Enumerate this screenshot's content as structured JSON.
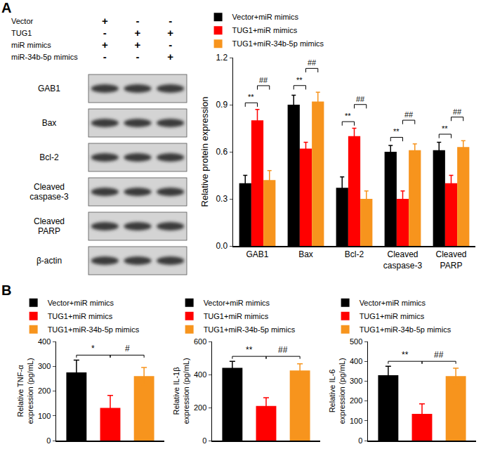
{
  "panel_labels": [
    "A",
    "B"
  ],
  "blot": {
    "conditions": [
      {
        "label": "Vector",
        "marks": [
          "+",
          "-",
          "-"
        ]
      },
      {
        "label": "TUG1",
        "marks": [
          "-",
          "+",
          "+"
        ]
      },
      {
        "label": "miR mimics",
        "marks": [
          "+",
          "+",
          "-"
        ]
      },
      {
        "label": "miR-34b-5p mimics",
        "marks": [
          "-",
          "-",
          "+"
        ]
      }
    ],
    "bands": [
      "GAB1",
      "Bax",
      "Bcl-2",
      "Cleaved caspase-3",
      "Cleaved PARP",
      "β-actin"
    ]
  },
  "chart_data": [
    {
      "type": "bar",
      "categories": [
        "GAB1",
        "Bax",
        "Bcl-2",
        "Cleaved caspase-3",
        "Cleaved PARP"
      ],
      "series": [
        {
          "name": "Vector+miR mimics",
          "color": "#000000",
          "values": [
            0.4,
            0.9,
            0.37,
            0.6,
            0.61
          ],
          "errors": [
            0.05,
            0.06,
            0.07,
            0.04,
            0.05
          ]
        },
        {
          "name": "TUG1+miR mimics",
          "color": "#ff0000",
          "values": [
            0.8,
            0.62,
            0.7,
            0.3,
            0.4
          ],
          "errors": [
            0.07,
            0.04,
            0.05,
            0.05,
            0.05
          ]
        },
        {
          "name": "TUG1+miR-34b-5p mimics",
          "color": "#f7941d",
          "values": [
            0.42,
            0.92,
            0.3,
            0.61,
            0.63
          ],
          "errors": [
            0.06,
            0.06,
            0.05,
            0.04,
            0.04
          ]
        }
      ],
      "ylim": [
        0,
        1.2
      ],
      "yticks": [
        {
          "value": 0,
          "label": "0.0"
        },
        0.3,
        0.6,
        0.9,
        1.2
      ],
      "y_label": "Relative protein expression",
      "legend": "top left",
      "annotations": [
        {
          "category": "GAB1",
          "text": "**",
          "between": [
            "Vector+miR mimics",
            "TUG1+miR mimics"
          ]
        },
        {
          "category": "GAB1",
          "text": "##",
          "between": [
            "TUG1+miR mimics",
            "TUG1+miR-34b-5p mimics"
          ]
        },
        {
          "category": "Bax",
          "text": "**",
          "between": [
            "Vector+miR mimics",
            "TUG1+miR mimics"
          ]
        },
        {
          "category": "Bax",
          "text": "##",
          "between": [
            "TUG1+miR mimics",
            "TUG1+miR-34b-5p mimics"
          ]
        },
        {
          "category": "Bcl-2",
          "text": "**",
          "between": [
            "Vector+miR mimics",
            "TUG1+miR mimics"
          ]
        },
        {
          "category": "Bcl-2",
          "text": "##",
          "between": [
            "TUG1+miR mimics",
            "TUG1+miR-34b-5p mimics"
          ]
        },
        {
          "category": "Cleaved caspase-3",
          "text": "**",
          "between": [
            "Vector+miR mimics",
            "TUG1+miR mimics"
          ]
        },
        {
          "category": "Cleaved caspase-3",
          "text": "##",
          "between": [
            "TUG1+miR mimics",
            "TUG1+miR-34b-5p mimics"
          ]
        },
        {
          "category": "Cleaved PARP",
          "text": "**",
          "between": [
            "Vector+miR mimics",
            "TUG1+miR mimics"
          ]
        },
        {
          "category": "Cleaved PARP",
          "text": "##",
          "between": [
            "TUG1+miR mimics",
            "TUG1+miR-34b-5p mimics"
          ]
        }
      ]
    },
    {
      "type": "bar",
      "categories": [
        "Vector+miR mimics",
        "TUG1+miR mimics",
        "TUG1+miR-34b-5p mimics"
      ],
      "values": [
        275,
        132,
        260
      ],
      "errors": [
        50,
        50,
        35
      ],
      "colors": [
        "#000000",
        "#ff0000",
        "#f7941d"
      ],
      "ylim": [
        0,
        400
      ],
      "yticks": [
        0,
        100,
        200,
        300,
        400
      ],
      "y_label": [
        "Relative TNF-α",
        "expression (pg/mL)"
      ],
      "tick_labels": "y",
      "legend": "top left",
      "annotations": [
        {
          "text": "*",
          "between": [
            "Vector+miR mimics",
            "TUG1+miR mimics"
          ]
        },
        {
          "text": "#",
          "between": [
            "TUG1+miR mimics",
            "TUG1+miR-34b-5p mimics"
          ]
        }
      ]
    },
    {
      "type": "bar",
      "categories": [
        "Vector+miR mimics",
        "TUG1+miR mimics",
        "TUG1+miR-34b-5p mimics"
      ],
      "values": [
        440,
        210,
        425
      ],
      "errors": [
        40,
        50,
        40
      ],
      "colors": [
        "#000000",
        "#ff0000",
        "#f7941d"
      ],
      "ylim": [
        0,
        600
      ],
      "yticks": [
        0,
        200,
        400,
        600
      ],
      "y_label": [
        "Relative IL-1β",
        "expression (pg/mL)"
      ],
      "tick_labels": "y",
      "legend": "top left",
      "annotations": [
        {
          "text": "**",
          "between": [
            "Vector+miR mimics",
            "TUG1+miR mimics"
          ]
        },
        {
          "text": "##",
          "between": [
            "TUG1+miR mimics",
            "TUG1+miR-34b-5p mimics"
          ]
        }
      ]
    },
    {
      "type": "bar",
      "categories": [
        "Vector+miR mimics",
        "TUG1+miR mimics",
        "TUG1+miR-34b-5p mimics"
      ],
      "values": [
        330,
        135,
        325
      ],
      "errors": [
        45,
        50,
        40
      ],
      "colors": [
        "#000000",
        "#ff0000",
        "#f7941d"
      ],
      "ylim": [
        0,
        500
      ],
      "yticks": [
        0,
        100,
        200,
        300,
        400,
        500
      ],
      "y_label": [
        "Relative IL-6",
        "expression (pg/mL)"
      ],
      "tick_labels": "y",
      "legend": "top left",
      "annotations": [
        {
          "text": "**",
          "between": [
            "Vector+miR mimics",
            "TUG1+miR mimics"
          ]
        },
        {
          "text": "##",
          "between": [
            "TUG1+miR mimics",
            "TUG1+miR-34b-5p mimics"
          ]
        }
      ]
    }
  ]
}
